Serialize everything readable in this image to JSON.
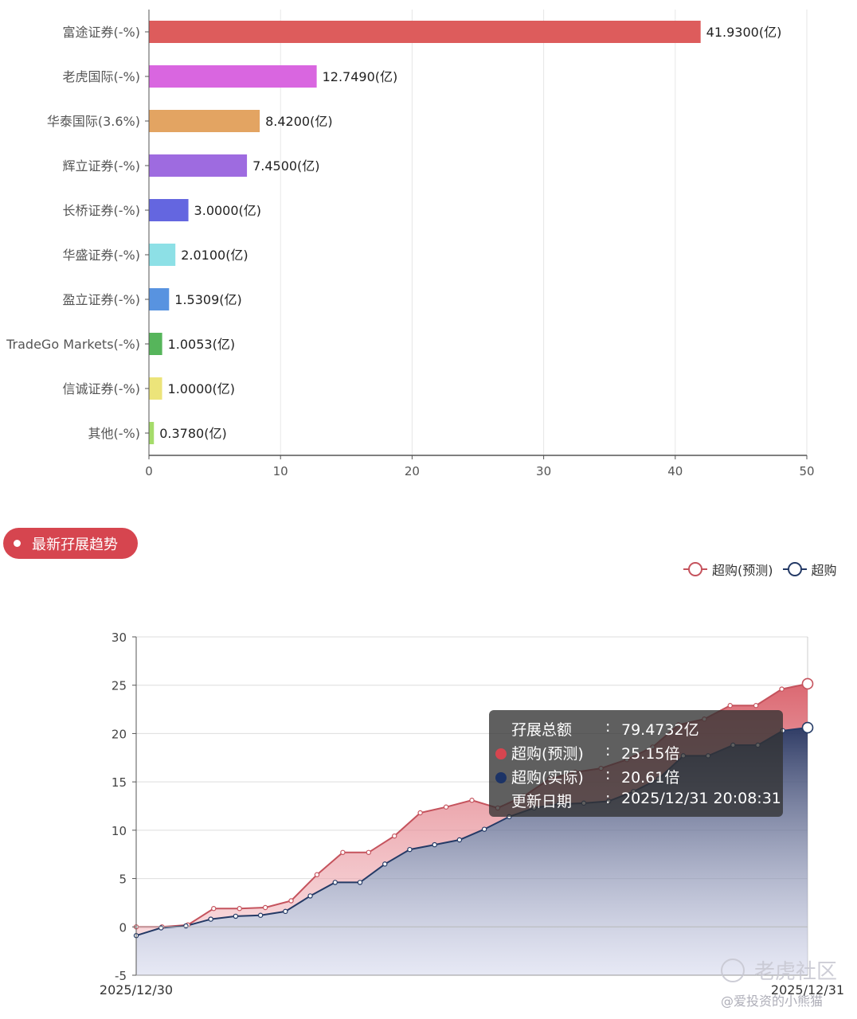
{
  "chart_data": [
    {
      "type": "bar",
      "orientation": "horizontal",
      "categories": [
        "富途证券(-%)",
        "老虎国际(-%)",
        "华泰国际(3.6%)",
        "辉立证券(-%)",
        "长桥证券(-%)",
        "华盛证券(-%)",
        "盈立证券(-%)",
        "TradeGo Markets(-%)",
        "信诚证券(-%)",
        "其他(-%)"
      ],
      "values": [
        41.93,
        12.749,
        8.42,
        7.45,
        3.0,
        2.01,
        1.5309,
        1.0053,
        1.0,
        0.378
      ],
      "data_labels": [
        "41.9300(亿)",
        "12.7490(亿)",
        "8.4200(亿)",
        "7.4500(亿)",
        "3.0000(亿)",
        "2.0100(亿)",
        "1.5309(亿)",
        "1.0053(亿)",
        "1.0000(亿)",
        "0.3780(亿)"
      ],
      "colors": [
        "#dd5c5c",
        "#d966e0",
        "#e3a462",
        "#9e6be0",
        "#6466e0",
        "#8de0e6",
        "#5893e0",
        "#56b55b",
        "#ece47a",
        "#a5dc6a"
      ],
      "xlim": [
        0,
        50
      ],
      "xticks": [
        0,
        10,
        20,
        30,
        40,
        50
      ],
      "grid": "vertical"
    },
    {
      "type": "area",
      "x_labels": [
        "2025/12/30",
        "2025/12/31"
      ],
      "ylim": [
        -5,
        30
      ],
      "yticks": [
        -5,
        0,
        5,
        10,
        15,
        20,
        25,
        30
      ],
      "grid": "horizontal",
      "legend_position": "top-right",
      "series": [
        {
          "name": "超购(预测)",
          "color": "#c5535d",
          "values": [
            0.0,
            0.0,
            0.2,
            1.9,
            1.9,
            2.0,
            2.7,
            5.4,
            7.7,
            7.7,
            9.4,
            11.8,
            12.4,
            13.1,
            12.3,
            13.5,
            15.3,
            16.0,
            16.4,
            17.3,
            18.6,
            20.9,
            21.5,
            22.9,
            22.9,
            24.6,
            25.15
          ]
        },
        {
          "name": "超购",
          "color": "#243a66",
          "values": [
            -0.9,
            -0.1,
            0.1,
            0.8,
            1.1,
            1.2,
            1.6,
            3.2,
            4.6,
            4.6,
            6.5,
            8.0,
            8.5,
            9.0,
            10.1,
            11.4,
            12.3,
            12.7,
            12.8,
            13.0,
            14.0,
            15.3,
            17.7,
            17.7,
            18.8,
            18.8,
            20.3,
            20.61
          ]
        }
      ]
    }
  ],
  "section_title": "最新孖展趋势",
  "legend": [
    {
      "label": "超购(预测)",
      "color": "#c5535d"
    },
    {
      "label": "超购",
      "color": "#243a66"
    }
  ],
  "tooltip": {
    "rows": [
      {
        "label": "孖展总额",
        "value": "79.4732亿",
        "dot": ""
      },
      {
        "label": "超购(预测)",
        "value": "25.15倍",
        "dot": "#d6454f"
      },
      {
        "label": "超购(实际)",
        "value": "20.61倍",
        "dot": "#1c3366"
      },
      {
        "label": "更新日期",
        "value": "2025/12/31 20:08:31",
        "dot": ""
      }
    ],
    "colon": ":"
  },
  "watermark": {
    "text": "老虎社区",
    "sub": "@爱投资的小熊猫"
  }
}
